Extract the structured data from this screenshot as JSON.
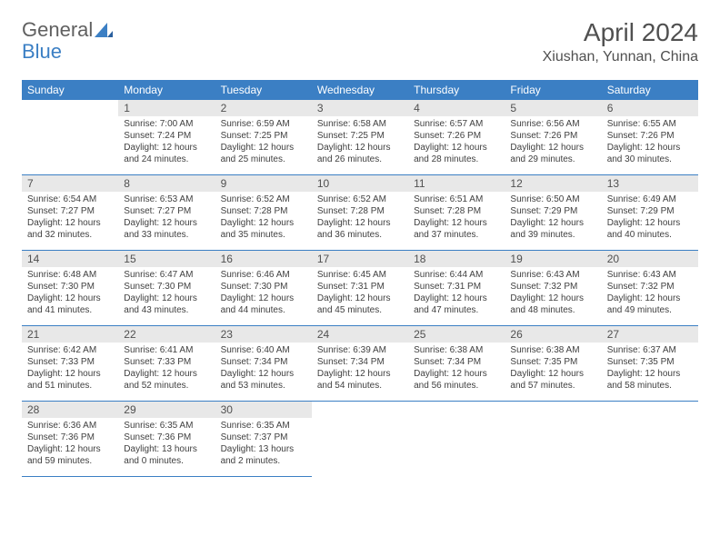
{
  "logo": {
    "text1": "General",
    "text2": "Blue"
  },
  "title": "April 2024",
  "location": "Xiushan, Yunnan, China",
  "colors": {
    "header_bg": "#3b7fc4",
    "header_text": "#ffffff",
    "daynum_bg": "#e8e8e8",
    "text": "#404040",
    "border": "#3b7fc4"
  },
  "weekdays": [
    "Sunday",
    "Monday",
    "Tuesday",
    "Wednesday",
    "Thursday",
    "Friday",
    "Saturday"
  ],
  "weeks": [
    [
      null,
      {
        "n": "1",
        "sr": "Sunrise: 7:00 AM",
        "ss": "Sunset: 7:24 PM",
        "d1": "Daylight: 12 hours",
        "d2": "and 24 minutes."
      },
      {
        "n": "2",
        "sr": "Sunrise: 6:59 AM",
        "ss": "Sunset: 7:25 PM",
        "d1": "Daylight: 12 hours",
        "d2": "and 25 minutes."
      },
      {
        "n": "3",
        "sr": "Sunrise: 6:58 AM",
        "ss": "Sunset: 7:25 PM",
        "d1": "Daylight: 12 hours",
        "d2": "and 26 minutes."
      },
      {
        "n": "4",
        "sr": "Sunrise: 6:57 AM",
        "ss": "Sunset: 7:26 PM",
        "d1": "Daylight: 12 hours",
        "d2": "and 28 minutes."
      },
      {
        "n": "5",
        "sr": "Sunrise: 6:56 AM",
        "ss": "Sunset: 7:26 PM",
        "d1": "Daylight: 12 hours",
        "d2": "and 29 minutes."
      },
      {
        "n": "6",
        "sr": "Sunrise: 6:55 AM",
        "ss": "Sunset: 7:26 PM",
        "d1": "Daylight: 12 hours",
        "d2": "and 30 minutes."
      }
    ],
    [
      {
        "n": "7",
        "sr": "Sunrise: 6:54 AM",
        "ss": "Sunset: 7:27 PM",
        "d1": "Daylight: 12 hours",
        "d2": "and 32 minutes."
      },
      {
        "n": "8",
        "sr": "Sunrise: 6:53 AM",
        "ss": "Sunset: 7:27 PM",
        "d1": "Daylight: 12 hours",
        "d2": "and 33 minutes."
      },
      {
        "n": "9",
        "sr": "Sunrise: 6:52 AM",
        "ss": "Sunset: 7:28 PM",
        "d1": "Daylight: 12 hours",
        "d2": "and 35 minutes."
      },
      {
        "n": "10",
        "sr": "Sunrise: 6:52 AM",
        "ss": "Sunset: 7:28 PM",
        "d1": "Daylight: 12 hours",
        "d2": "and 36 minutes."
      },
      {
        "n": "11",
        "sr": "Sunrise: 6:51 AM",
        "ss": "Sunset: 7:28 PM",
        "d1": "Daylight: 12 hours",
        "d2": "and 37 minutes."
      },
      {
        "n": "12",
        "sr": "Sunrise: 6:50 AM",
        "ss": "Sunset: 7:29 PM",
        "d1": "Daylight: 12 hours",
        "d2": "and 39 minutes."
      },
      {
        "n": "13",
        "sr": "Sunrise: 6:49 AM",
        "ss": "Sunset: 7:29 PM",
        "d1": "Daylight: 12 hours",
        "d2": "and 40 minutes."
      }
    ],
    [
      {
        "n": "14",
        "sr": "Sunrise: 6:48 AM",
        "ss": "Sunset: 7:30 PM",
        "d1": "Daylight: 12 hours",
        "d2": "and 41 minutes."
      },
      {
        "n": "15",
        "sr": "Sunrise: 6:47 AM",
        "ss": "Sunset: 7:30 PM",
        "d1": "Daylight: 12 hours",
        "d2": "and 43 minutes."
      },
      {
        "n": "16",
        "sr": "Sunrise: 6:46 AM",
        "ss": "Sunset: 7:30 PM",
        "d1": "Daylight: 12 hours",
        "d2": "and 44 minutes."
      },
      {
        "n": "17",
        "sr": "Sunrise: 6:45 AM",
        "ss": "Sunset: 7:31 PM",
        "d1": "Daylight: 12 hours",
        "d2": "and 45 minutes."
      },
      {
        "n": "18",
        "sr": "Sunrise: 6:44 AM",
        "ss": "Sunset: 7:31 PM",
        "d1": "Daylight: 12 hours",
        "d2": "and 47 minutes."
      },
      {
        "n": "19",
        "sr": "Sunrise: 6:43 AM",
        "ss": "Sunset: 7:32 PM",
        "d1": "Daylight: 12 hours",
        "d2": "and 48 minutes."
      },
      {
        "n": "20",
        "sr": "Sunrise: 6:43 AM",
        "ss": "Sunset: 7:32 PM",
        "d1": "Daylight: 12 hours",
        "d2": "and 49 minutes."
      }
    ],
    [
      {
        "n": "21",
        "sr": "Sunrise: 6:42 AM",
        "ss": "Sunset: 7:33 PM",
        "d1": "Daylight: 12 hours",
        "d2": "and 51 minutes."
      },
      {
        "n": "22",
        "sr": "Sunrise: 6:41 AM",
        "ss": "Sunset: 7:33 PM",
        "d1": "Daylight: 12 hours",
        "d2": "and 52 minutes."
      },
      {
        "n": "23",
        "sr": "Sunrise: 6:40 AM",
        "ss": "Sunset: 7:34 PM",
        "d1": "Daylight: 12 hours",
        "d2": "and 53 minutes."
      },
      {
        "n": "24",
        "sr": "Sunrise: 6:39 AM",
        "ss": "Sunset: 7:34 PM",
        "d1": "Daylight: 12 hours",
        "d2": "and 54 minutes."
      },
      {
        "n": "25",
        "sr": "Sunrise: 6:38 AM",
        "ss": "Sunset: 7:34 PM",
        "d1": "Daylight: 12 hours",
        "d2": "and 56 minutes."
      },
      {
        "n": "26",
        "sr": "Sunrise: 6:38 AM",
        "ss": "Sunset: 7:35 PM",
        "d1": "Daylight: 12 hours",
        "d2": "and 57 minutes."
      },
      {
        "n": "27",
        "sr": "Sunrise: 6:37 AM",
        "ss": "Sunset: 7:35 PM",
        "d1": "Daylight: 12 hours",
        "d2": "and 58 minutes."
      }
    ],
    [
      {
        "n": "28",
        "sr": "Sunrise: 6:36 AM",
        "ss": "Sunset: 7:36 PM",
        "d1": "Daylight: 12 hours",
        "d2": "and 59 minutes."
      },
      {
        "n": "29",
        "sr": "Sunrise: 6:35 AM",
        "ss": "Sunset: 7:36 PM",
        "d1": "Daylight: 13 hours",
        "d2": "and 0 minutes."
      },
      {
        "n": "30",
        "sr": "Sunrise: 6:35 AM",
        "ss": "Sunset: 7:37 PM",
        "d1": "Daylight: 13 hours",
        "d2": "and 2 minutes."
      },
      null,
      null,
      null,
      null
    ]
  ]
}
